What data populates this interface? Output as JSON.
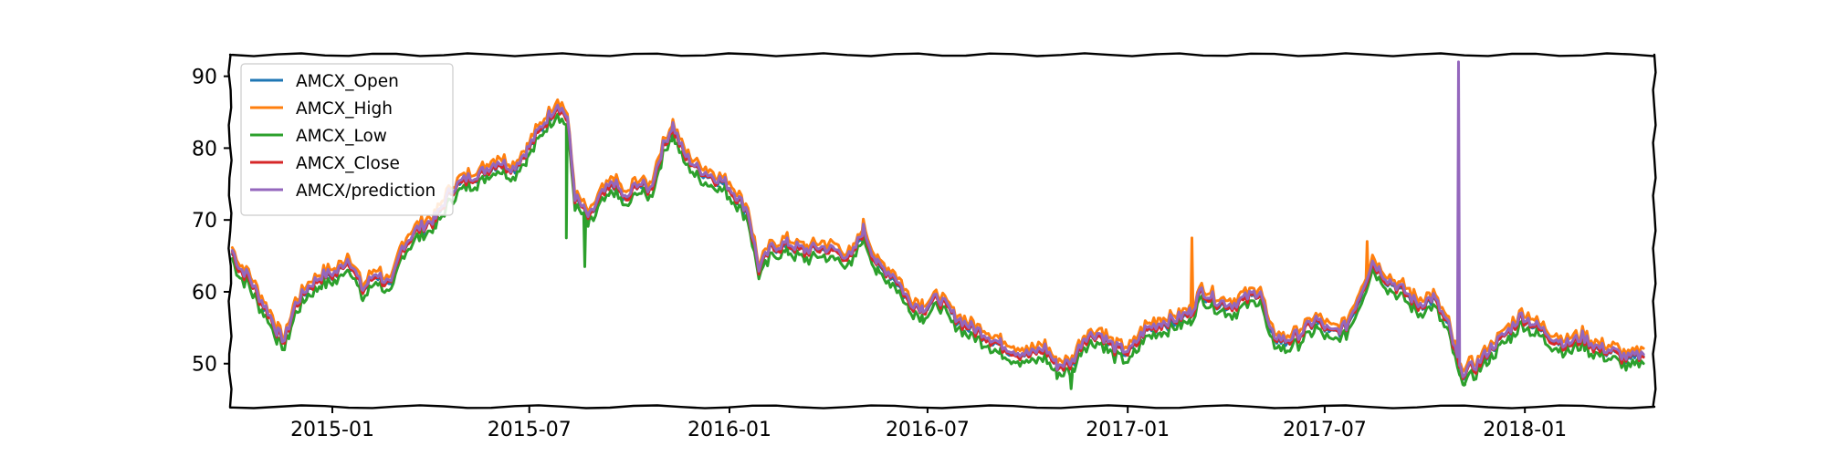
{
  "chart_data": {
    "type": "line",
    "title": "",
    "xlabel": "",
    "ylabel": "",
    "x_range": [
      "2014-09-29",
      "2018-04-30"
    ],
    "ylim": [
      44,
      93
    ],
    "x_ticks": [
      {
        "date": "2015-01-01",
        "label": "2015-01"
      },
      {
        "date": "2015-07-01",
        "label": "2015-07"
      },
      {
        "date": "2016-01-01",
        "label": "2016-01"
      },
      {
        "date": "2016-07-01",
        "label": "2016-07"
      },
      {
        "date": "2017-01-01",
        "label": "2017-01"
      },
      {
        "date": "2017-07-01",
        "label": "2017-07"
      },
      {
        "date": "2018-01-01",
        "label": "2018-01"
      }
    ],
    "y_ticks": [
      {
        "value": 50,
        "label": "50"
      },
      {
        "value": 60,
        "label": "60"
      },
      {
        "value": 70,
        "label": "70"
      },
      {
        "value": 80,
        "label": "80"
      },
      {
        "value": 90,
        "label": "90"
      }
    ],
    "grid": false,
    "legend_position": "top-left",
    "series": [
      {
        "name": "AMCX_Open",
        "color": "#1f77b4",
        "offset": 0,
        "spikes": []
      },
      {
        "name": "AMCX_High",
        "color": "#ff7f0e",
        "offset": 0.9,
        "spikes": [
          {
            "date": "2017-03-01",
            "value": 67.5
          },
          {
            "date": "2017-08-09",
            "value": 67
          }
        ]
      },
      {
        "name": "AMCX_Low",
        "color": "#2ca02c",
        "offset": -1.0,
        "spikes": [
          {
            "date": "2015-08-04",
            "value": 67.5
          },
          {
            "date": "2015-08-21",
            "value": 63.5
          },
          {
            "date": "2016-11-10",
            "value": 46.5
          },
          {
            "date": "2017-11-06",
            "value": 47
          }
        ]
      },
      {
        "name": "AMCX_Close",
        "color": "#d62728",
        "offset": 0,
        "spikes": []
      },
      {
        "name": "AMCX/prediction",
        "color": "#9467bd",
        "offset": 0.3,
        "spikes": [
          {
            "date": "2017-11-01",
            "value": 92
          }
        ]
      }
    ],
    "base_points": [
      [
        "2014-10-01",
        65.5
      ],
      [
        "2014-10-08",
        63
      ],
      [
        "2014-10-16",
        62
      ],
      [
        "2014-10-24",
        59.5
      ],
      [
        "2014-11-03",
        57
      ],
      [
        "2014-11-12",
        54
      ],
      [
        "2014-11-18",
        53
      ],
      [
        "2014-11-28",
        58
      ],
      [
        "2014-12-10",
        60.5
      ],
      [
        "2014-12-22",
        62
      ],
      [
        "2015-01-05",
        62.5
      ],
      [
        "2015-01-16",
        64.5
      ],
      [
        "2015-01-29",
        60
      ],
      [
        "2015-02-10",
        62.5
      ],
      [
        "2015-02-24",
        60.5
      ],
      [
        "2015-03-06",
        66
      ],
      [
        "2015-03-20",
        68.5
      ],
      [
        "2015-04-06",
        70
      ],
      [
        "2015-04-20",
        74
      ],
      [
        "2015-05-04",
        75.5
      ],
      [
        "2015-05-19",
        76.5
      ],
      [
        "2015-06-02",
        78
      ],
      [
        "2015-06-16",
        77
      ],
      [
        "2015-06-29",
        79.5
      ],
      [
        "2015-07-13",
        83
      ],
      [
        "2015-07-27",
        86
      ],
      [
        "2015-08-05",
        84
      ],
      [
        "2015-08-12",
        73
      ],
      [
        "2015-08-25",
        70
      ],
      [
        "2015-09-04",
        73
      ],
      [
        "2015-09-17",
        75
      ],
      [
        "2015-09-28",
        72.5
      ],
      [
        "2015-10-08",
        75
      ],
      [
        "2015-10-20",
        74
      ],
      [
        "2015-11-01",
        80
      ],
      [
        "2015-11-10",
        83
      ],
      [
        "2015-11-20",
        79
      ],
      [
        "2015-12-02",
        77
      ],
      [
        "2015-12-15",
        76
      ],
      [
        "2015-12-28",
        75
      ],
      [
        "2016-01-08",
        73
      ],
      [
        "2016-01-18",
        71
      ],
      [
        "2016-01-28",
        63
      ],
      [
        "2016-02-09",
        66
      ],
      [
        "2016-02-24",
        66.5
      ],
      [
        "2016-03-10",
        65.5
      ],
      [
        "2016-03-24",
        66
      ],
      [
        "2016-04-08",
        65.5
      ],
      [
        "2016-04-22",
        64.5
      ],
      [
        "2016-05-03",
        68.5
      ],
      [
        "2016-05-16",
        63.5
      ],
      [
        "2016-06-01",
        62
      ],
      [
        "2016-06-14",
        58.5
      ],
      [
        "2016-06-27",
        57.5
      ],
      [
        "2016-07-11",
        59
      ],
      [
        "2016-07-25",
        56.5
      ],
      [
        "2016-08-08",
        55
      ],
      [
        "2016-08-22",
        54
      ],
      [
        "2016-09-06",
        52.5
      ],
      [
        "2016-09-20",
        51.5
      ],
      [
        "2016-10-03",
        51
      ],
      [
        "2016-10-17",
        52
      ],
      [
        "2016-10-28",
        49.5
      ],
      [
        "2016-11-11",
        50
      ],
      [
        "2016-11-22",
        53.5
      ],
      [
        "2016-12-06",
        54
      ],
      [
        "2016-12-20",
        52
      ],
      [
        "2017-01-03",
        51.5
      ],
      [
        "2017-01-17",
        54.5
      ],
      [
        "2017-02-01",
        55.5
      ],
      [
        "2017-02-15",
        56
      ],
      [
        "2017-02-28",
        57
      ],
      [
        "2017-03-10",
        60
      ],
      [
        "2017-03-24",
        58.5
      ],
      [
        "2017-04-07",
        58
      ],
      [
        "2017-04-21",
        59
      ],
      [
        "2017-05-03",
        60
      ],
      [
        "2017-05-12",
        54
      ],
      [
        "2017-05-26",
        53
      ],
      [
        "2017-06-09",
        54
      ],
      [
        "2017-06-23",
        56
      ],
      [
        "2017-07-07",
        54
      ],
      [
        "2017-07-21",
        55
      ],
      [
        "2017-08-04",
        60
      ],
      [
        "2017-08-14",
        64
      ],
      [
        "2017-08-28",
        61.5
      ],
      [
        "2017-09-11",
        60
      ],
      [
        "2017-09-25",
        58
      ],
      [
        "2017-10-09",
        59
      ],
      [
        "2017-10-23",
        55
      ],
      [
        "2017-11-03",
        48.5
      ],
      [
        "2017-11-17",
        49.5
      ],
      [
        "2017-12-01",
        52
      ],
      [
        "2017-12-15",
        54
      ],
      [
        "2017-12-29",
        56.5
      ],
      [
        "2018-01-12",
        55
      ],
      [
        "2018-01-26",
        53.5
      ],
      [
        "2018-02-09",
        52.5
      ],
      [
        "2018-02-23",
        53.5
      ],
      [
        "2018-03-09",
        52
      ],
      [
        "2018-03-23",
        51.5
      ],
      [
        "2018-04-06",
        50.5
      ],
      [
        "2018-04-20",
        51
      ]
    ]
  }
}
